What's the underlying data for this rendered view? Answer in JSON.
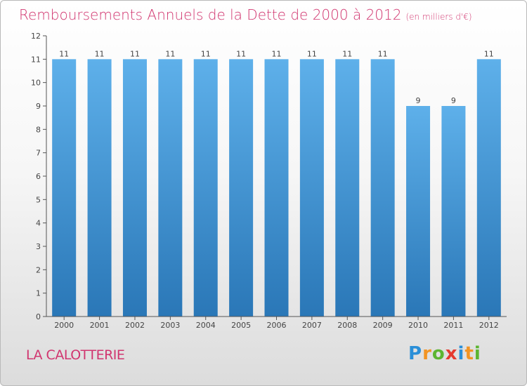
{
  "title": "Remboursements Annuels de la Dette de 2000 à 2012",
  "unit_note": "(en milliers d'€)",
  "commune": "LA CALOTTERIE",
  "logo": {
    "letters": [
      "P",
      "r",
      "o",
      "x",
      "i",
      "t",
      "i"
    ],
    "colors": [
      "#2a8fd8",
      "#f29423",
      "#5cb531",
      "#e53a2f",
      "#2a8fd8",
      "#f29423",
      "#5cb531"
    ]
  },
  "colors": {
    "title": "#d1356f",
    "bar_top": "#5eb0ea",
    "bar_bottom": "#2a77b7"
  },
  "chart_data": {
    "type": "bar",
    "categories": [
      "2000",
      "2001",
      "2002",
      "2003",
      "2004",
      "2005",
      "2006",
      "2007",
      "2008",
      "2009",
      "2010",
      "2011",
      "2012"
    ],
    "values": [
      11,
      11,
      11,
      11,
      11,
      11,
      11,
      11,
      11,
      11,
      9,
      9,
      11
    ],
    "value_labels": [
      "11",
      "11",
      "11",
      "11",
      "11",
      "11",
      "11",
      "11",
      "11",
      "11",
      "9",
      "9",
      "11"
    ],
    "y_ticks": [
      "0",
      "1",
      "2",
      "3",
      "4",
      "5",
      "6",
      "7",
      "8",
      "9",
      "10",
      "11",
      "12"
    ],
    "ylim": [
      0,
      12
    ],
    "grid": false
  }
}
